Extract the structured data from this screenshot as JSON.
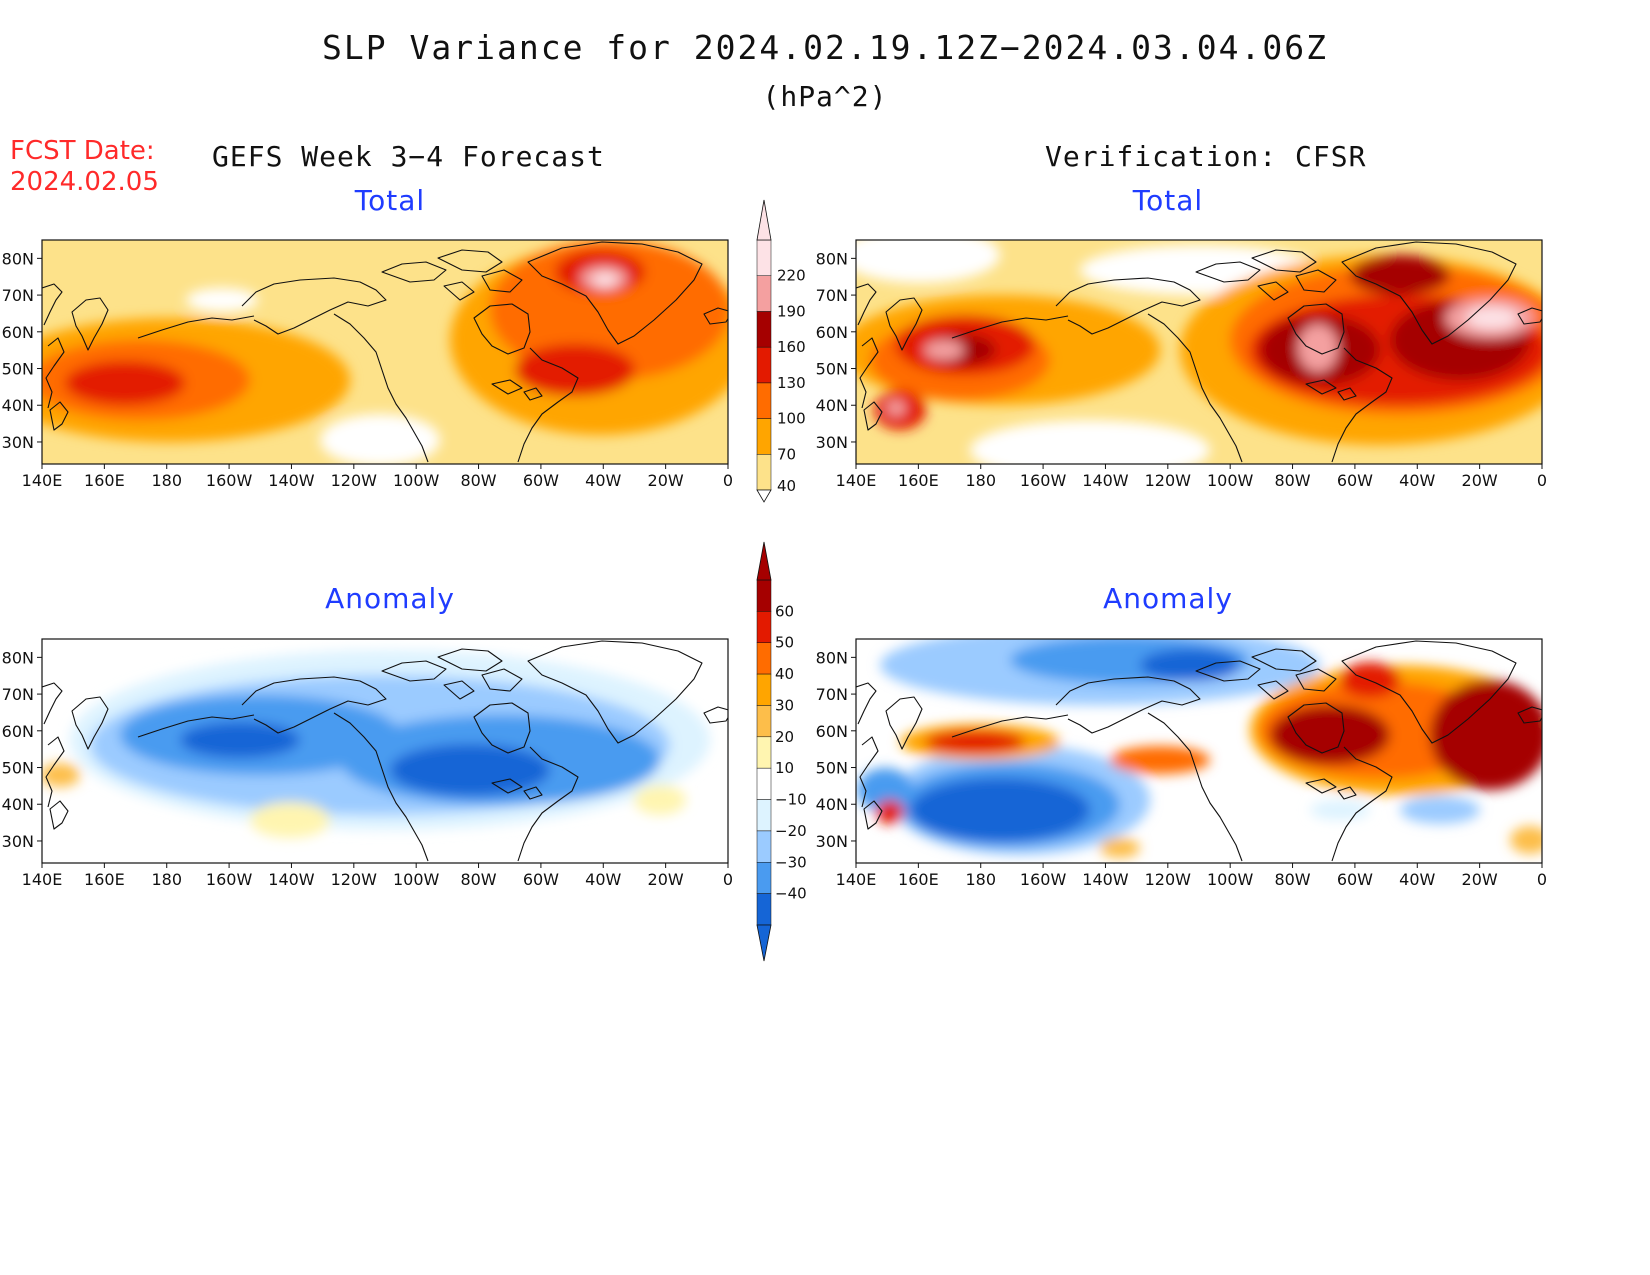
{
  "title": "SLP Variance for 2024.02.19.12Z−2024.03.04.06Z",
  "units": "(hPa^2)",
  "forecast": {
    "label": "FCST Date:",
    "date": "2024.02.05"
  },
  "columns": {
    "left": "GEFS Week 3−4 Forecast",
    "right": "Verification: CFSR"
  },
  "panels": {
    "total_left": "Total",
    "total_right": "Total",
    "anomaly_left": "Anomaly",
    "anomaly_right": "Anomaly"
  },
  "axes": {
    "lon_labels": [
      "140E",
      "160E",
      "180",
      "160W",
      "140W",
      "120W",
      "100W",
      "80W",
      "60W",
      "40W",
      "20W",
      "0"
    ],
    "lat_labels": [
      "80N",
      "70N",
      "60N",
      "50N",
      "40N",
      "30N"
    ]
  },
  "colorbars": {
    "total": {
      "levels": [
        40,
        70,
        100,
        130,
        160,
        190,
        220
      ],
      "colors": [
        "#fde28a",
        "#ffa500",
        "#ff6c00",
        "#e31a00",
        "#a50000",
        "#f4a0a0",
        "#fde2e6"
      ]
    },
    "anomaly": {
      "labels": [
        "60",
        "50",
        "40",
        "30",
        "20",
        "10",
        "−10",
        "−20",
        "−30",
        "−40"
      ],
      "colors_pos": [
        "#a50000",
        "#e31a00",
        "#ff6c00",
        "#ffa500",
        "#fdbe4a",
        "#fff5b0"
      ],
      "colors_neg": [
        "#ddf3ff",
        "#9bcbff",
        "#4a9bf0",
        "#1565d6"
      ]
    }
  }
}
